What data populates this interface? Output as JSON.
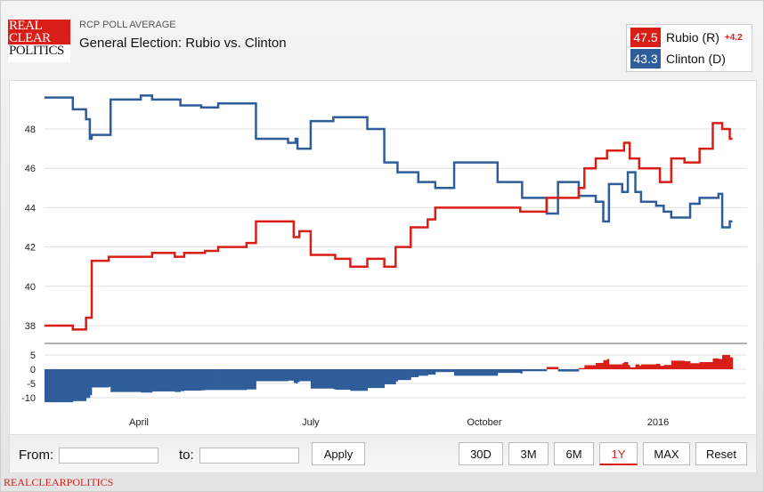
{
  "header": {
    "logo_lines": [
      "REAL",
      "CLEAR",
      "POLITICS"
    ],
    "subtitle": "RCP POLL AVERAGE",
    "title": "General Election: Rubio vs. Clinton"
  },
  "legend": [
    {
      "value": "47.5",
      "name": "Rubio (R)",
      "change": "+4.2",
      "color": "#d91e18"
    },
    {
      "value": "43.3",
      "name": "Clinton (D)",
      "color": "#2f5d9a"
    }
  ],
  "controls": {
    "from_label": "From:",
    "from_value": "",
    "to_label": "to:",
    "to_value": "",
    "apply": "Apply",
    "ranges": [
      "30D",
      "3M",
      "6M",
      "1Y",
      "MAX",
      "Reset"
    ],
    "active_range": "1Y"
  },
  "footer": "REALCLEARPOLITICS",
  "chart_data": {
    "type": "line",
    "step": true,
    "grid": true,
    "legend": "top-right",
    "x_ticks": [
      {
        "date": "2015-04-01",
        "label": "April"
      },
      {
        "date": "2015-07-01",
        "label": "July"
      },
      {
        "date": "2015-10-01",
        "label": "October"
      },
      {
        "date": "2016-01-01",
        "label": "2016"
      }
    ],
    "y_ticks": [
      38,
      40,
      42,
      44,
      46,
      48
    ],
    "ylim": [
      37.1,
      50.3
    ],
    "spread_panel": {
      "type": "area",
      "y_ticks": [
        5,
        0,
        -5,
        -10
      ],
      "ylim": [
        -12.8,
        9
      ],
      "positive_color": "#d91e18",
      "negative_color": "#2f5d9a"
    },
    "series": [
      {
        "name": "Clinton (D)",
        "color": "#2f5d9a",
        "points": [
          [
            "2015-02-10",
            49.6
          ],
          [
            "2015-02-25",
            49.0
          ],
          [
            "2015-03-04",
            48.5
          ],
          [
            "2015-03-06",
            47.5
          ],
          [
            "2015-03-07",
            47.7
          ],
          [
            "2015-03-17",
            49.5
          ],
          [
            "2015-04-02",
            49.7
          ],
          [
            "2015-04-08",
            49.5
          ],
          [
            "2015-04-23",
            49.2
          ],
          [
            "2015-05-04",
            49.1
          ],
          [
            "2015-05-13",
            49.3
          ],
          [
            "2015-06-02",
            47.5
          ],
          [
            "2015-06-19",
            47.3
          ],
          [
            "2015-06-23",
            47.5
          ],
          [
            "2015-06-24",
            47.0
          ],
          [
            "2015-07-01",
            48.4
          ],
          [
            "2015-07-13",
            48.6
          ],
          [
            "2015-07-31",
            48.0
          ],
          [
            "2015-08-09",
            46.3
          ],
          [
            "2015-08-16",
            45.8
          ],
          [
            "2015-08-27",
            45.3
          ],
          [
            "2015-09-05",
            45.0
          ],
          [
            "2015-09-15",
            46.3
          ],
          [
            "2015-10-08",
            45.3
          ],
          [
            "2015-10-21",
            44.5
          ],
          [
            "2015-11-03",
            43.7
          ],
          [
            "2015-11-09",
            45.3
          ],
          [
            "2015-11-20",
            44.6
          ],
          [
            "2015-11-29",
            44.3
          ],
          [
            "2015-12-03",
            43.3
          ],
          [
            "2015-12-06",
            45.2
          ],
          [
            "2015-12-13",
            44.8
          ],
          [
            "2015-12-16",
            45.8
          ],
          [
            "2015-12-20",
            44.8
          ],
          [
            "2015-12-23",
            44.3
          ],
          [
            "2015-12-31",
            44.1
          ],
          [
            "2016-01-04",
            43.8
          ],
          [
            "2016-01-08",
            43.5
          ],
          [
            "2016-01-18",
            44.2
          ],
          [
            "2016-01-23",
            44.5
          ],
          [
            "2016-02-02",
            44.7
          ],
          [
            "2016-02-04",
            43.0
          ],
          [
            "2016-02-08",
            43.3
          ]
        ]
      },
      {
        "name": "Rubio (R)",
        "color": "#d91e18",
        "points": [
          [
            "2015-02-10",
            38.0
          ],
          [
            "2015-02-25",
            37.8
          ],
          [
            "2015-03-04",
            38.4
          ],
          [
            "2015-03-07",
            41.3
          ],
          [
            "2015-03-16",
            41.5
          ],
          [
            "2015-04-08",
            41.7
          ],
          [
            "2015-04-20",
            41.5
          ],
          [
            "2015-04-25",
            41.7
          ],
          [
            "2015-05-06",
            41.8
          ],
          [
            "2015-05-13",
            42.0
          ],
          [
            "2015-05-28",
            42.2
          ],
          [
            "2015-06-02",
            43.3
          ],
          [
            "2015-06-22",
            42.5
          ],
          [
            "2015-06-25",
            42.8
          ],
          [
            "2015-07-01",
            41.6
          ],
          [
            "2015-07-14",
            41.4
          ],
          [
            "2015-07-22",
            41.0
          ],
          [
            "2015-07-31",
            41.4
          ],
          [
            "2015-08-09",
            41.0
          ],
          [
            "2015-08-15",
            42.0
          ],
          [
            "2015-08-23",
            43.0
          ],
          [
            "2015-09-01",
            43.4
          ],
          [
            "2015-09-05",
            44.0
          ],
          [
            "2015-10-20",
            43.8
          ],
          [
            "2015-11-03",
            44.5
          ],
          [
            "2015-11-20",
            45.0
          ],
          [
            "2015-11-23",
            46.0
          ],
          [
            "2015-11-29",
            46.5
          ],
          [
            "2015-12-05",
            46.9
          ],
          [
            "2015-12-14",
            47.3
          ],
          [
            "2015-12-17",
            46.5
          ],
          [
            "2015-12-22",
            46.0
          ],
          [
            "2016-01-02",
            45.3
          ],
          [
            "2016-01-08",
            46.5
          ],
          [
            "2016-01-15",
            46.3
          ],
          [
            "2016-01-23",
            47.0
          ],
          [
            "2016-01-30",
            48.3
          ],
          [
            "2016-02-04",
            48.0
          ],
          [
            "2016-02-08",
            47.5
          ]
        ]
      }
    ]
  }
}
